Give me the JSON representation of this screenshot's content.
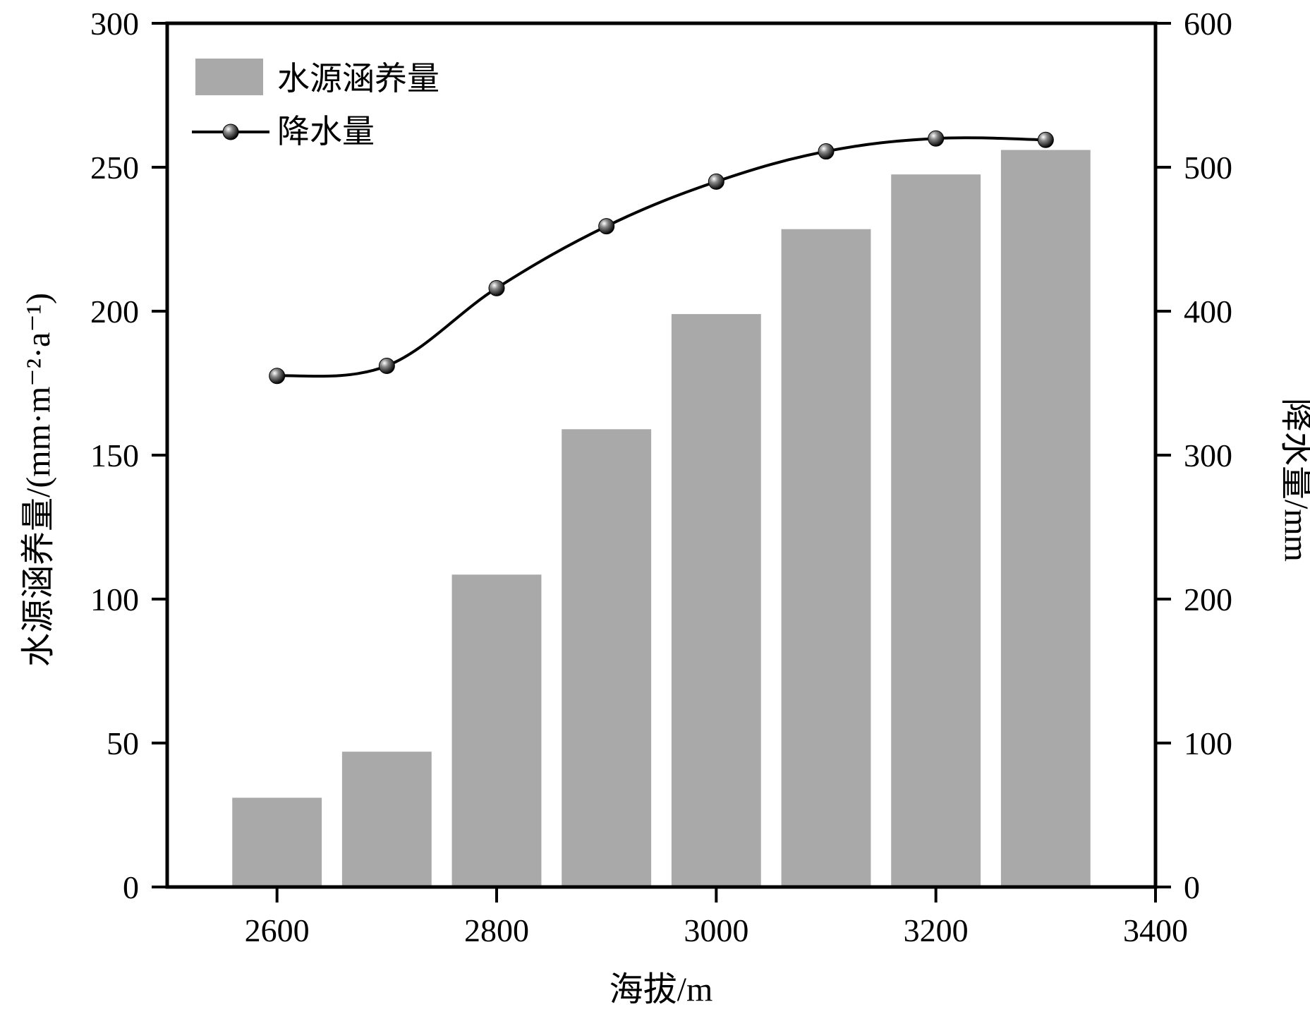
{
  "chart_data": {
    "type": "bar",
    "x": [
      2600,
      2700,
      2800,
      2900,
      3000,
      3100,
      3200,
      3300
    ],
    "xlabel": "海拔/m",
    "xlim": [
      2500,
      3400
    ],
    "xticks": [
      2600,
      2800,
      3000,
      3200,
      3400
    ],
    "ylabel_left": "水源涵养量/(mm·m⁻²·a⁻¹)",
    "ylim_left": [
      0,
      300
    ],
    "yticks_left": [
      0,
      50,
      100,
      150,
      200,
      250,
      300
    ],
    "ylabel_right": "降水量/mm",
    "ylim_right": [
      0,
      600
    ],
    "yticks_right": [
      0,
      100,
      200,
      300,
      400,
      500,
      600
    ],
    "grid": false,
    "legend_position": "top-left",
    "series": [
      {
        "name": "水源涵养量",
        "type": "bar",
        "axis": "left",
        "color": "#a9a9a9",
        "values": [
          31,
          47,
          108.5,
          159,
          199,
          228.5,
          247.5,
          256
        ]
      },
      {
        "name": "降水量",
        "type": "line",
        "axis": "right",
        "color": "#000000",
        "marker": "sphere",
        "values": [
          355,
          362,
          416,
          459,
          490,
          511,
          520,
          519
        ]
      }
    ]
  }
}
